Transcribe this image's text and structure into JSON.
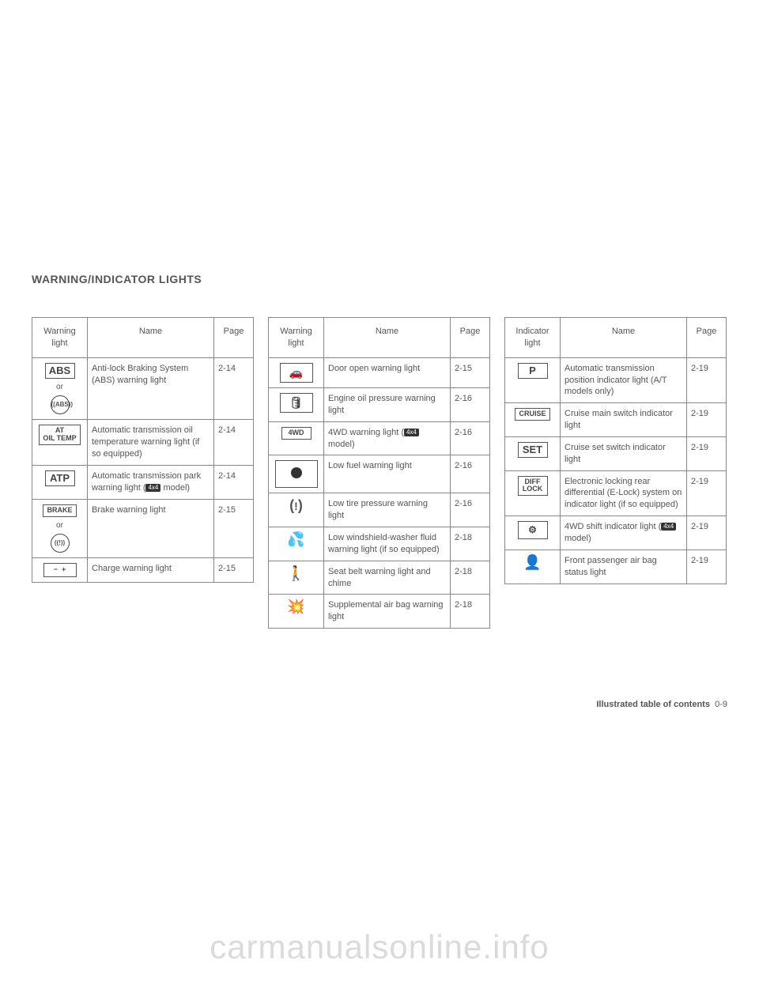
{
  "section_title": "WARNING/INDICATOR LIGHTS",
  "footer_label": "Illustrated table of contents",
  "footer_page": "0-9",
  "watermark": "carmanualsonline.info",
  "badge_4x4": "4x4",
  "or_text": "or",
  "tables": [
    {
      "headers": [
        "Warning light",
        "Name",
        "Page"
      ],
      "rows": [
        {
          "icon_type": "abs",
          "icon_text_1": "ABS",
          "icon_text_2": "((ABS))",
          "name": "Anti-lock Braking System (ABS) warning light",
          "page": "2-14"
        },
        {
          "icon_type": "box2line",
          "icon_text_1": "AT",
          "icon_text_2": "OIL TEMP",
          "name": "Automatic transmission oil temperature warning light (if so equipped)",
          "page": "2-14"
        },
        {
          "icon_type": "boxbig",
          "icon_text_1": "ATP",
          "name_pre": "Automatic transmission park warning light (",
          "name_post": " model)",
          "has_4x4": true,
          "page": "2-14"
        },
        {
          "icon_type": "brake",
          "icon_text_1": "BRAKE",
          "icon_text_2": "((!))",
          "name": "Brake warning light",
          "page": "2-15"
        },
        {
          "icon_type": "battery",
          "name": "Charge warning light",
          "page": "2-15"
        }
      ]
    },
    {
      "headers": [
        "Warning light",
        "Name",
        "Page"
      ],
      "rows": [
        {
          "icon_type": "door",
          "name": "Door open warning light",
          "page": "2-15"
        },
        {
          "icon_type": "oilcan",
          "name": "Engine oil pressure warning light",
          "page": "2-16"
        },
        {
          "icon_type": "boxsmall",
          "icon_text_1": "4WD",
          "name_pre": "4WD warning light (",
          "name_post": " model)",
          "has_4x4": true,
          "page": "2-16"
        },
        {
          "icon_type": "dotboxed",
          "name": "Low fuel warning light",
          "page": "2-16"
        },
        {
          "icon_type": "tire",
          "name": "Low tire pressure warning light",
          "page": "2-16"
        },
        {
          "icon_type": "washer",
          "name": "Low windshield-washer fluid warning light (if so equipped)",
          "page": "2-18"
        },
        {
          "icon_type": "seatbelt",
          "name": "Seat belt warning light and chime",
          "page": "2-18"
        },
        {
          "icon_type": "airbag",
          "name": "Supplemental air bag warning light",
          "page": "2-18"
        }
      ]
    },
    {
      "headers": [
        "Indicator light",
        "Name",
        "Page"
      ],
      "rows": [
        {
          "icon_type": "boxbig",
          "icon_text_1": "P",
          "name": "Automatic transmission position indicator light (A/T models only)",
          "page": "2-19"
        },
        {
          "icon_type": "boxsmall",
          "icon_text_1": "CRUISE",
          "name": "Cruise main switch indicator light",
          "page": "2-19"
        },
        {
          "icon_type": "boxbig",
          "icon_text_1": "SET",
          "name": "Cruise set switch indicator light",
          "page": "2-19"
        },
        {
          "icon_type": "box2line",
          "icon_text_1": "DIFF",
          "icon_text_2": "LOCK",
          "name": "Electronic locking rear differential (E-Lock) system on indicator light (if so equipped)",
          "page": "2-19"
        },
        {
          "icon_type": "4wdshift",
          "name_pre": "4WD shift indicator light (",
          "name_post": " model)",
          "has_4x4": true,
          "page": "2-19"
        },
        {
          "icon_type": "passenger",
          "name": "Front passenger air bag status light",
          "page": "2-19"
        }
      ]
    }
  ]
}
